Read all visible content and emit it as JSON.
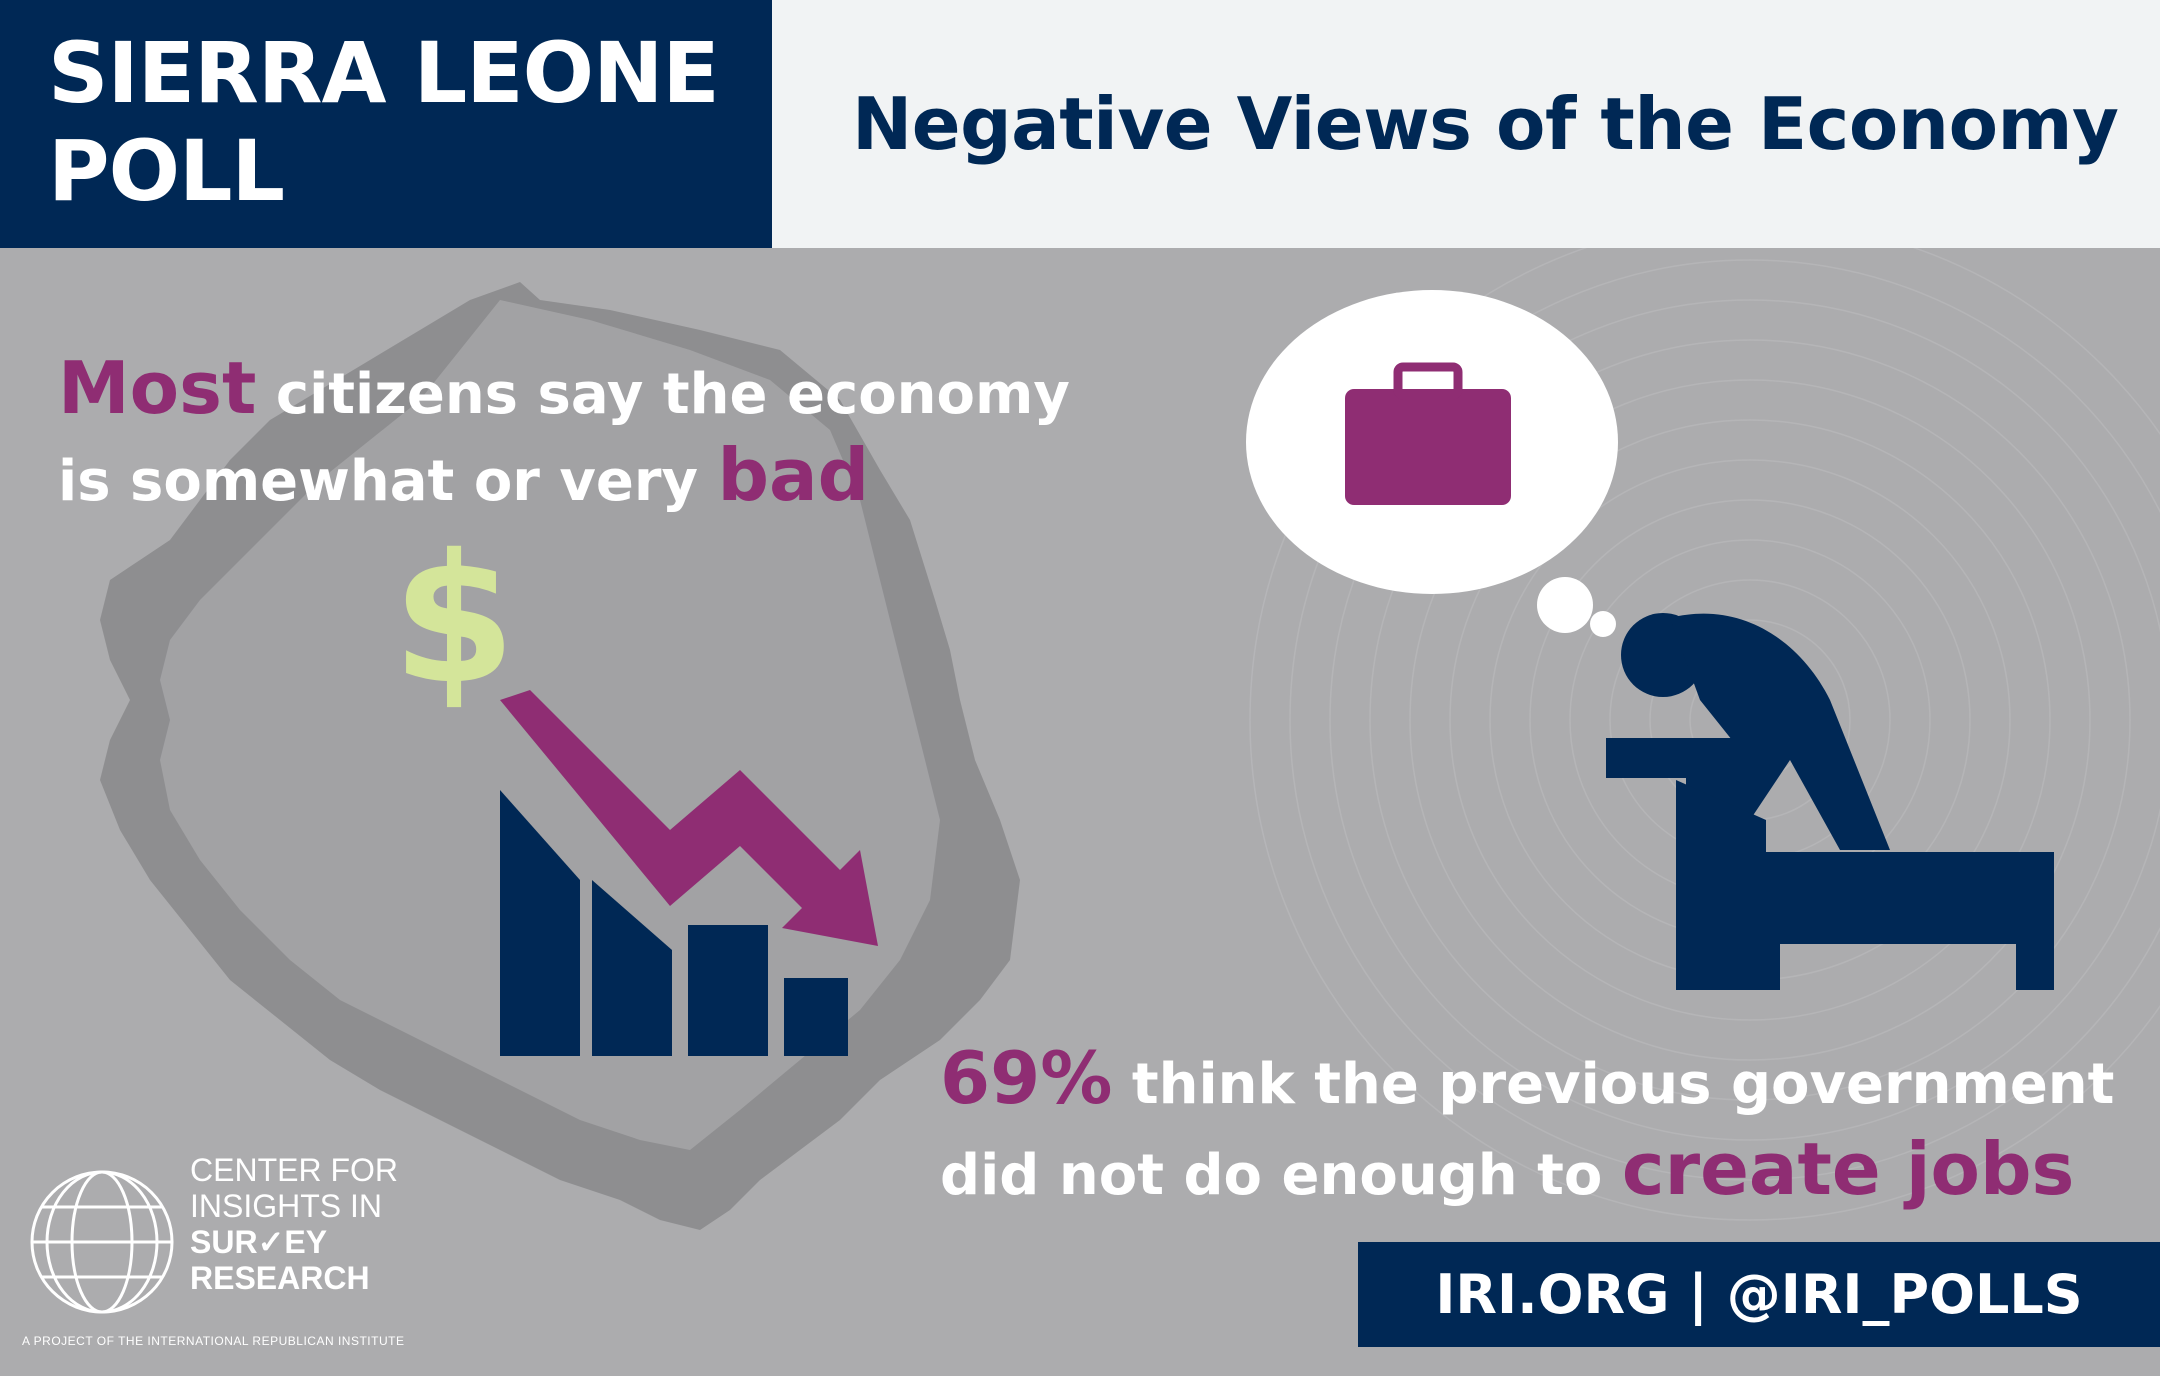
{
  "header": {
    "title_line1": "SIERRA LEONE",
    "title_line2": "POLL",
    "subtitle": "Negative Views of the Economy"
  },
  "headline": {
    "emphasis_start": "Most",
    "text_middle": " citizens say the economy",
    "text_line2": "is somewhat or very ",
    "emphasis_end": "bad"
  },
  "stat": {
    "value": "69%",
    "text_line1": " think the previous government",
    "text_line2": "did not do enough to ",
    "emphasis": "create jobs"
  },
  "icons": {
    "dollar": "$"
  },
  "footer": {
    "text": "IRI.ORG | @IRI_POLLS"
  },
  "logo": {
    "line1": "CENTER FOR",
    "line2": "INSIGHTS IN",
    "line3a": "SUR",
    "line3b": "EY",
    "line4": "RESEARCH",
    "tagline": "A PROJECT OF THE INTERNATIONAL REPUBLICAN INSTITUTE"
  },
  "colors": {
    "navy": "#002855",
    "purple": "#8f2d73",
    "lime": "#d4e59a",
    "background_gray": "#acacae",
    "map_gray": "#8e8e90"
  }
}
